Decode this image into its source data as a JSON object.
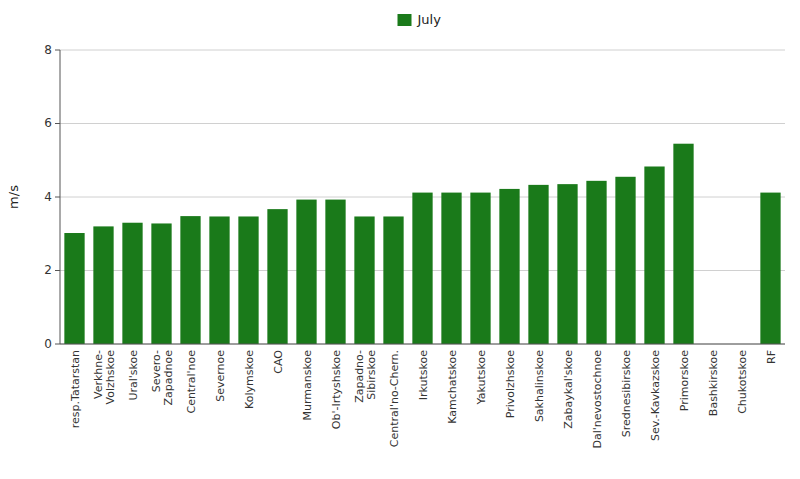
{
  "chart_data": {
    "type": "bar",
    "y_label": "m/s",
    "categories": [
      "resp.Tatarstan",
      "Verkhne-\nVolzhskoe",
      "Ural'skoe",
      "Severo-\nZapadnoe",
      "Central'noe",
      "Severnoe",
      "Kolymskoe",
      "CAO",
      "Murmanskoe",
      "Ob'-Irtyshskoe",
      "Zapadno-\nSibirskoe",
      "Central'no-Chern.",
      "Irkutskoe",
      "Kamchatskoe",
      "Yakutskoe",
      "Privolzhskoe",
      "Sakhalinskoe",
      "Zabaykal'skoe",
      "Dal'nevostochnoe",
      "Srednesibirskoe",
      "Sev.-Kavkazskoe",
      "Primorskoe",
      "Bashkirskoe",
      "Chukotskoe",
      "RF"
    ],
    "series": [
      {
        "name": "July",
        "color": "#1a7a1a",
        "values": [
          3.02,
          3.2,
          3.3,
          3.28,
          3.48,
          3.47,
          3.47,
          3.67,
          3.93,
          3.93,
          3.47,
          3.47,
          4.12,
          4.12,
          4.12,
          4.22,
          4.33,
          4.35,
          4.44,
          4.55,
          4.83,
          5.45,
          0.0,
          0.0,
          4.12
        ]
      }
    ],
    "ylim": [
      0,
      8
    ],
    "yticks": [
      0,
      2,
      4,
      6,
      8
    ],
    "grid": true,
    "legend": "top"
  }
}
